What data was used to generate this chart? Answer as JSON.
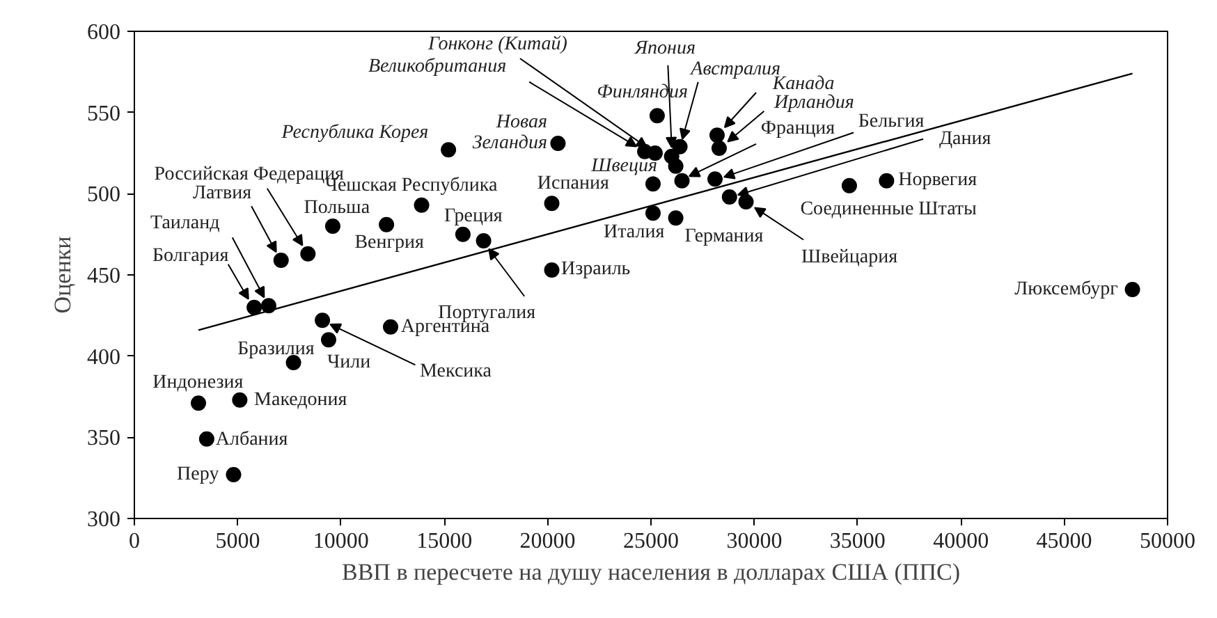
{
  "chart_data": {
    "type": "scatter",
    "xlabel": "ВВП в пересчете на душу населения в долларах США (ППС)",
    "ylabel": "Оценки",
    "xlim": [
      0,
      50000
    ],
    "ylim": [
      300,
      600
    ],
    "xticks": [
      0,
      5000,
      10000,
      15000,
      20000,
      25000,
      30000,
      35000,
      40000,
      45000,
      50000
    ],
    "yticks": [
      300,
      350,
      400,
      450,
      500,
      550,
      600
    ],
    "grid": false,
    "series": [
      {
        "marker": "circle",
        "color": "#000000",
        "x": [
          4800,
          3500,
          3100,
          5100,
          7700,
          9400,
          9100,
          12400,
          5800,
          6500,
          7100,
          8400,
          9600,
          12200,
          13900,
          15900,
          16900,
          25300,
          25200,
          24700,
          26000,
          26400,
          28200,
          28300,
          26500,
          28100,
          28800,
          29600,
          25100,
          20200,
          25100,
          26200,
          34600,
          36400,
          20200,
          20500,
          15200,
          48300,
          26200
        ],
        "values": [
          327,
          349,
          371,
          373,
          396,
          410,
          422,
          418,
          430,
          431,
          459,
          463,
          480,
          481,
          493,
          475,
          471,
          548,
          525,
          526,
          523,
          529,
          536,
          528,
          508,
          509,
          498,
          495,
          506,
          494,
          488,
          485,
          505,
          508,
          453,
          531,
          527,
          441,
          517
        ]
      },
      {
        "type": "line",
        "color": "#000000",
        "x": [
          3100,
          48300
        ],
        "values": [
          416,
          574
        ]
      }
    ],
    "annotations": [
      {
        "text": "Перу",
        "x": 4764,
        "y": 326.9
      },
      {
        "text": "Албания",
        "x": 3461,
        "y": 348.6
      },
      {
        "text": "Индонезия",
        "x": 3079,
        "y": 370.9
      },
      {
        "text": "Македония",
        "x": 5124,
        "y": 372.9
      },
      {
        "text": "Бразилия",
        "x": 7663,
        "y": 395.7
      },
      {
        "text": "Чили",
        "x": 9438,
        "y": 409.7
      },
      {
        "text": "Мексика",
        "x": 9079,
        "y": 422
      },
      {
        "text": "Аргентина",
        "x": 12427,
        "y": 418
      },
      {
        "text": "Болгария",
        "x": 5753,
        "y": 430
      },
      {
        "text": "Таиланд",
        "x": 6494,
        "y": 431
      },
      {
        "text": "Латвия",
        "x": 7079,
        "y": 458.9
      },
      {
        "text": "Российская Федерация",
        "x": 8382,
        "y": 463
      },
      {
        "text": "Польша",
        "x": 9596,
        "y": 480
      },
      {
        "text": "Венгрия",
        "x": 12202,
        "y": 480.9
      },
      {
        "text": "Чешская Республика",
        "x": 13865,
        "y": 492.9
      },
      {
        "text": "Греция",
        "x": 15933,
        "y": 474.9
      },
      {
        "text": "Португалия",
        "x": 16854,
        "y": 471.1
      },
      {
        "text": "Финляндия",
        "x": 25325,
        "y": 547.7
      },
      {
        "text": "Гонконг (Китай)",
        "x": 25200,
        "y": 525
      },
      {
        "text": "Великобритания",
        "x": 24700,
        "y": 526
      },
      {
        "text": "Япония",
        "x": 26023,
        "y": 523.4
      },
      {
        "text": "Австралия",
        "x": 26406,
        "y": 528.5
      },
      {
        "text": "Канада",
        "x": 28203,
        "y": 535.7
      },
      {
        "text": "Ирландия",
        "x": 28315,
        "y": 527.7
      },
      {
        "text": "Франция",
        "x": 26450,
        "y": 508.3
      },
      {
        "text": "Бельгия",
        "x": 28135,
        "y": 508.5
      },
      {
        "text": "Дания",
        "x": 28810,
        "y": 497.7
      },
      {
        "text": "Швейцария",
        "x": 29619,
        "y": 494.8
      },
      {
        "text": "Швеция",
        "x": 25123,
        "y": 505.7
      },
      {
        "text": "Испания",
        "x": 20226,
        "y": 494
      },
      {
        "text": "Италия",
        "x": 25123,
        "y": 488.2
      },
      {
        "text": "Германия",
        "x": 26180,
        "y": 485.4
      },
      {
        "text": "Соединенные Штаты",
        "x": 34607,
        "y": 504.9
      },
      {
        "text": "Норвегия",
        "x": 36360,
        "y": 508.3
      },
      {
        "text": "Израиль",
        "x": 20180,
        "y": 453.4
      },
      {
        "text": "Новая\nЗеландия",
        "x": 20450,
        "y": 530.6
      },
      {
        "text": "Республика Корея",
        "x": 15191,
        "y": 526.5
      },
      {
        "text": "Люксембург",
        "x": 48270,
        "y": 441.1
      }
    ]
  }
}
